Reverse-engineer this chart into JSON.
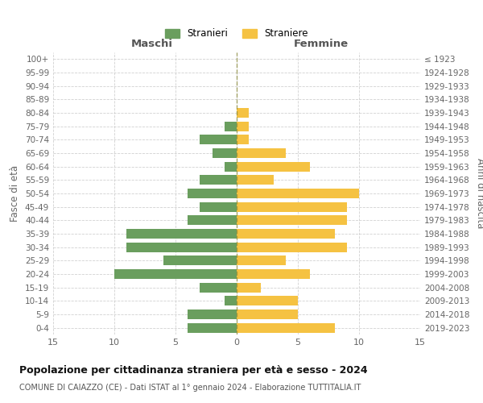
{
  "age_groups": [
    "0-4",
    "5-9",
    "10-14",
    "15-19",
    "20-24",
    "25-29",
    "30-34",
    "35-39",
    "40-44",
    "45-49",
    "50-54",
    "55-59",
    "60-64",
    "65-69",
    "70-74",
    "75-79",
    "80-84",
    "85-89",
    "90-94",
    "95-99",
    "100+"
  ],
  "birth_years": [
    "2019-2023",
    "2014-2018",
    "2009-2013",
    "2004-2008",
    "1999-2003",
    "1994-1998",
    "1989-1993",
    "1984-1988",
    "1979-1983",
    "1974-1978",
    "1969-1973",
    "1964-1968",
    "1959-1963",
    "1954-1958",
    "1949-1953",
    "1944-1948",
    "1939-1943",
    "1934-1938",
    "1929-1933",
    "1924-1928",
    "≤ 1923"
  ],
  "males": [
    4,
    4,
    1,
    3,
    10,
    6,
    9,
    9,
    4,
    3,
    4,
    3,
    1,
    2,
    3,
    1,
    0,
    0,
    0,
    0,
    0
  ],
  "females": [
    8,
    5,
    5,
    2,
    6,
    4,
    9,
    8,
    9,
    9,
    10,
    3,
    6,
    4,
    1,
    1,
    1,
    0,
    0,
    0,
    0
  ],
  "male_color": "#6a9e5e",
  "female_color": "#f5c242",
  "title": "Popolazione per cittadinanza straniera per età e sesso - 2024",
  "subtitle": "COMUNE DI CAIAZZO (CE) - Dati ISTAT al 1° gennaio 2024 - Elaborazione TUTTITALIA.IT",
  "xlabel_left": "Maschi",
  "xlabel_right": "Femmine",
  "ylabel_left": "Fasce di età",
  "ylabel_right": "Anni di nascita",
  "legend_male": "Stranieri",
  "legend_female": "Straniere",
  "xlim": 15,
  "background_color": "#ffffff",
  "grid_color": "#cccccc"
}
